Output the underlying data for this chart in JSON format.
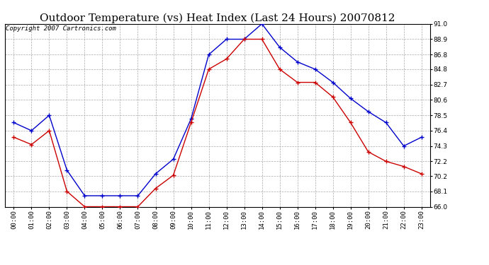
{
  "title": "Outdoor Temperature (vs) Heat Index (Last 24 Hours) 20070812",
  "copyright_text": "Copyright 2007 Cartronics.com",
  "hours": [
    "00:00",
    "01:00",
    "02:00",
    "03:00",
    "04:00",
    "05:00",
    "06:00",
    "07:00",
    "08:00",
    "09:00",
    "10:00",
    "11:00",
    "12:00",
    "13:00",
    "14:00",
    "15:00",
    "16:00",
    "17:00",
    "18:00",
    "19:00",
    "20:00",
    "21:00",
    "22:00",
    "23:00"
  ],
  "blue_data": [
    77.5,
    76.4,
    78.5,
    71.0,
    67.5,
    67.5,
    67.5,
    67.5,
    70.5,
    72.5,
    78.0,
    86.8,
    88.9,
    88.9,
    91.0,
    87.8,
    85.8,
    84.8,
    83.0,
    80.8,
    79.0,
    77.5,
    74.3,
    75.5
  ],
  "red_data": [
    75.5,
    74.5,
    76.4,
    68.1,
    66.0,
    66.0,
    66.0,
    66.0,
    68.5,
    70.3,
    77.5,
    84.8,
    86.2,
    88.9,
    88.9,
    84.8,
    83.0,
    83.0,
    81.0,
    77.5,
    73.5,
    72.2,
    71.5,
    70.5
  ],
  "ylim": [
    66.0,
    91.0
  ],
  "yticks": [
    66.0,
    68.1,
    70.2,
    72.2,
    74.3,
    76.4,
    78.5,
    80.6,
    82.7,
    84.8,
    86.8,
    88.9,
    91.0
  ],
  "blue_color": "#0000cc",
  "red_color": "#cc0000",
  "bg_color": "#ffffff",
  "plot_bg_color": "#ffffff",
  "grid_color": "#aaaaaa",
  "title_fontsize": 11,
  "copyright_fontsize": 6.5
}
